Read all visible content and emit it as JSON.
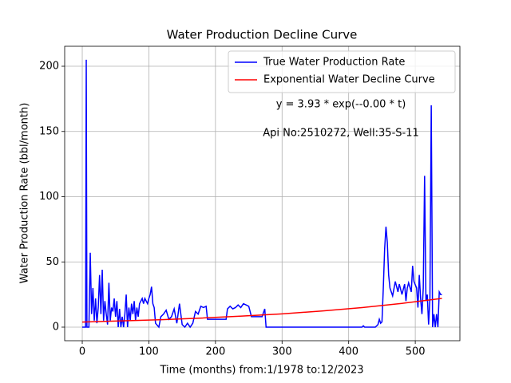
{
  "chart_data": {
    "type": "line",
    "title": "Water Production Decline Curve",
    "xlabel": "Time (months) from:1/1978 to:12/2023",
    "ylabel": "Water Production Rate (bbl/month)",
    "annotations": [
      "y = 3.93 * exp(--0.00 * t)",
      "Api No:2510272, Well:35-S-11"
    ],
    "xlim": [
      -26.4,
      567
    ],
    "ylim": [
      -10.4,
      215.3
    ],
    "xticks": [
      0,
      100,
      200,
      300,
      400,
      500
    ],
    "yticks": [
      0,
      50,
      100,
      150,
      200
    ],
    "grid": true,
    "legend": "upper right",
    "series": [
      {
        "name": "True Water Production Rate",
        "color": "#0000ff",
        "x": [
          0,
          5,
          6,
          7,
          10,
          12,
          14,
          16,
          18,
          20,
          22,
          24,
          26,
          28,
          30,
          32,
          34,
          36,
          38,
          40,
          42,
          44,
          46,
          48,
          50,
          52,
          54,
          56,
          58,
          60,
          62,
          64,
          66,
          68,
          70,
          72,
          74,
          76,
          78,
          80,
          82,
          84,
          86,
          88,
          90,
          92,
          94,
          96,
          98,
          100,
          102,
          104,
          106,
          108,
          110,
          115,
          118,
          122,
          126,
          130,
          134,
          138,
          142,
          146,
          150,
          154,
          158,
          162,
          166,
          170,
          174,
          178,
          182,
          186,
          188,
          192,
          196,
          200,
          204,
          208,
          212,
          216,
          218,
          222,
          226,
          230,
          234,
          238,
          242,
          246,
          250,
          254,
          258,
          262,
          266,
          270,
          274,
          276,
          280,
          300,
          350,
          400,
          420,
          422,
          424,
          440,
          444,
          446,
          448,
          450,
          452,
          454,
          456,
          458,
          460,
          462,
          466,
          470,
          474,
          476,
          480,
          484,
          486,
          488,
          490,
          494,
          496,
          498,
          502,
          504,
          506,
          508,
          510,
          512,
          514,
          516,
          518,
          520,
          522,
          524,
          526,
          528,
          530,
          532,
          534,
          536,
          538,
          540
        ],
        "values": [
          0,
          0,
          205,
          0,
          0,
          57,
          10,
          30,
          5,
          22,
          3,
          15,
          40,
          10,
          44,
          5,
          20,
          10,
          2,
          34,
          5,
          15,
          12,
          22,
          8,
          20,
          0,
          14,
          0,
          8,
          0,
          10,
          25,
          0,
          15,
          5,
          18,
          10,
          20,
          5,
          15,
          8,
          18,
          20,
          22,
          18,
          22,
          20,
          18,
          22,
          25,
          31,
          18,
          15,
          3,
          0,
          8,
          10,
          13,
          6,
          8,
          14,
          3,
          18,
          2,
          0,
          3,
          0,
          3,
          12,
          10,
          16,
          15,
          16,
          6,
          6,
          6,
          6,
          6,
          6,
          6,
          6,
          14,
          16,
          14,
          15,
          17,
          15,
          18,
          17,
          16,
          8,
          8,
          8,
          8,
          8,
          14,
          0,
          0,
          0,
          0,
          0,
          0,
          1,
          0,
          0,
          2,
          6,
          3,
          4,
          30,
          60,
          77,
          65,
          40,
          30,
          24,
          35,
          27,
          33,
          25,
          33,
          20,
          30,
          34,
          27,
          47,
          35,
          30,
          15,
          40,
          22,
          10,
          30,
          116,
          20,
          25,
          2,
          22,
          170,
          0,
          10,
          0,
          10,
          0,
          27,
          25,
          25
        ]
      },
      {
        "name": "Exponential Water Decline Curve",
        "color": "#ff0000",
        "x": [
          0,
          60,
          120,
          180,
          240,
          300,
          360,
          420,
          480,
          540
        ],
        "values": [
          3.93,
          4.78,
          5.76,
          6.98,
          8.45,
          10.2,
          12.4,
          15.0,
          18.2,
          22.0
        ]
      }
    ]
  }
}
